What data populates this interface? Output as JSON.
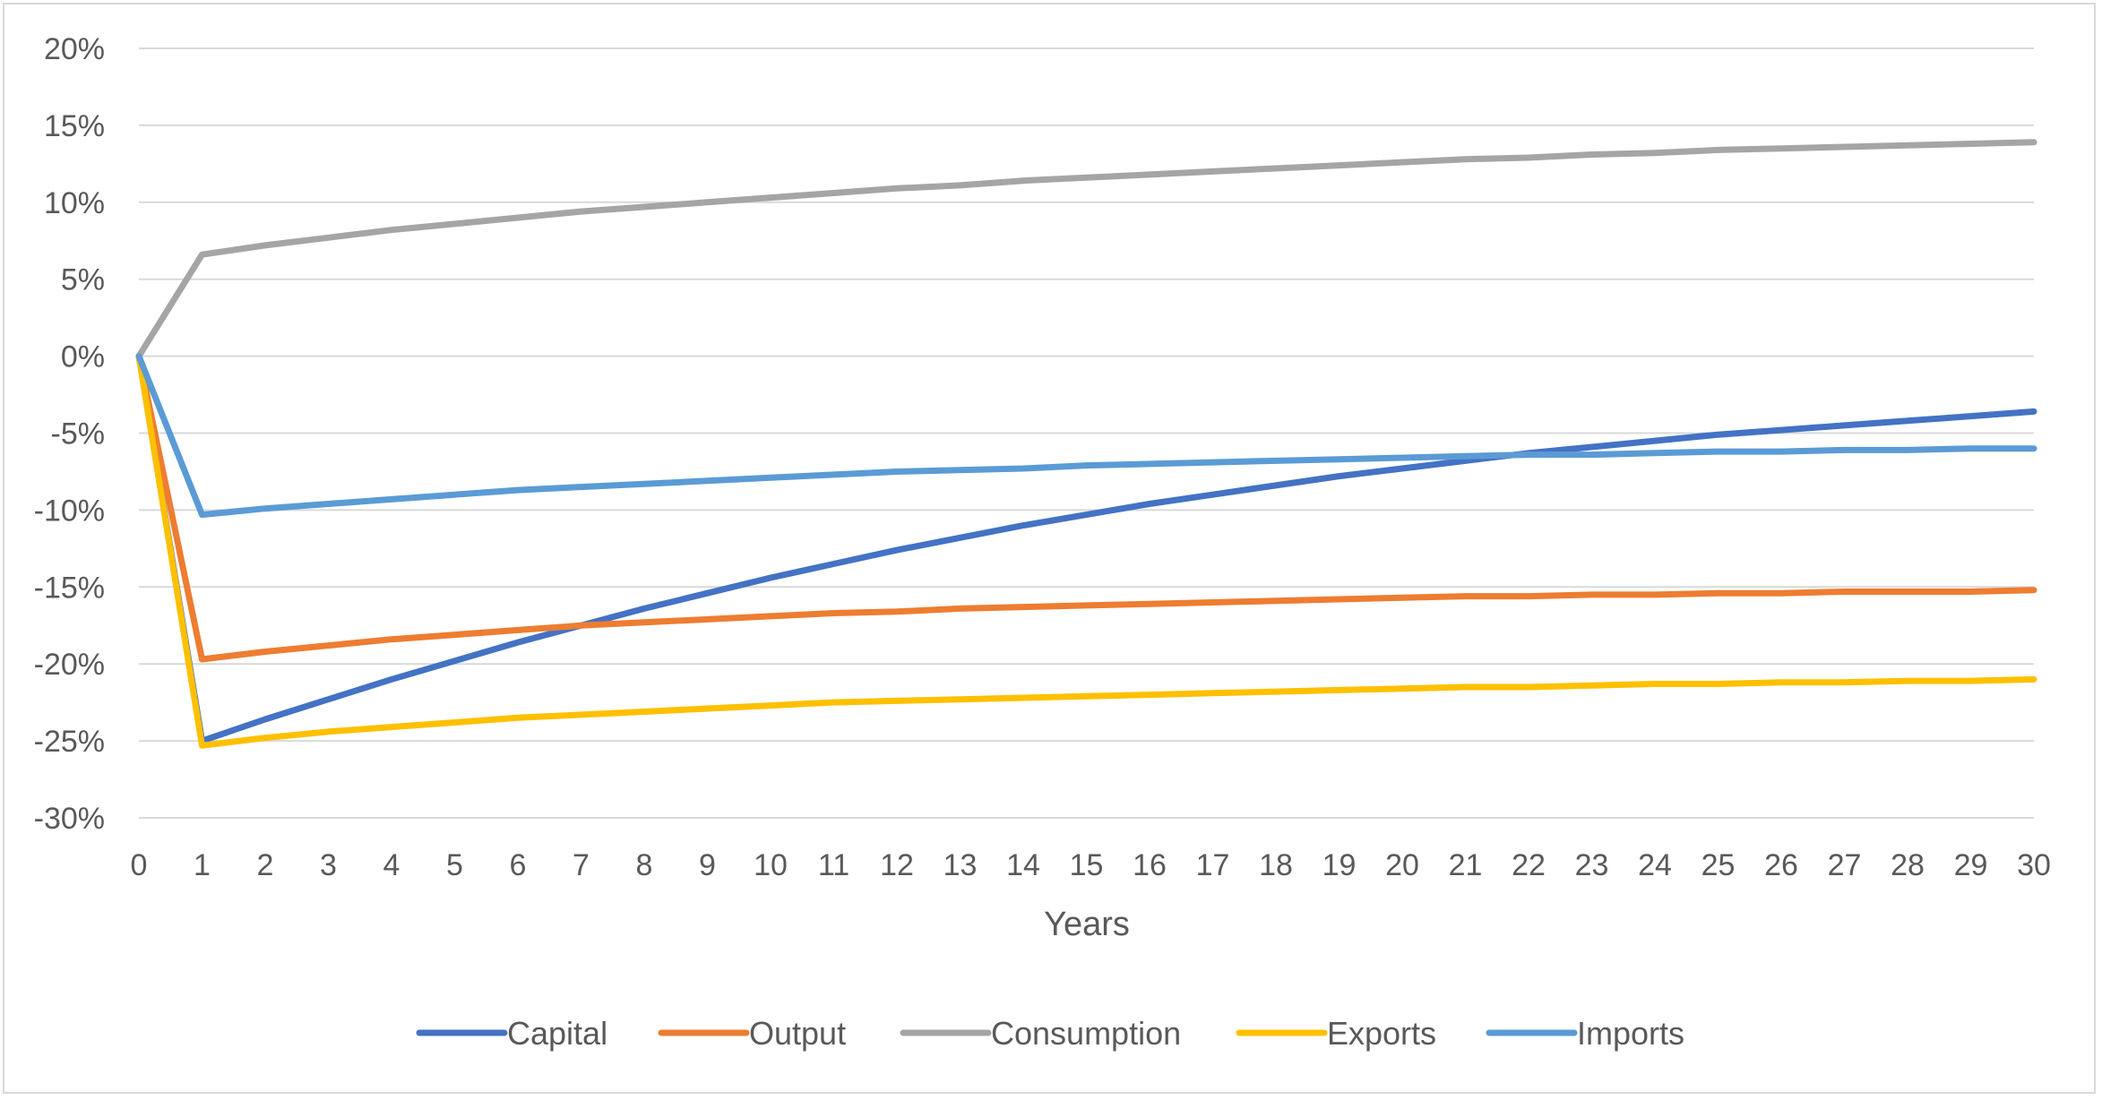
{
  "chart_data": {
    "type": "line",
    "title": "",
    "xlabel": "Years",
    "ylabel": "",
    "x": [
      0,
      1,
      2,
      3,
      4,
      5,
      6,
      7,
      8,
      9,
      10,
      11,
      12,
      13,
      14,
      15,
      16,
      17,
      18,
      19,
      20,
      21,
      22,
      23,
      24,
      25,
      26,
      27,
      28,
      29,
      30
    ],
    "xlim": [
      0,
      30
    ],
    "ylim": [
      -30,
      20
    ],
    "y_ticks": [
      20,
      15,
      10,
      5,
      0,
      -5,
      -10,
      -15,
      -20,
      -25,
      -30
    ],
    "y_tick_labels": [
      "20%",
      "15%",
      "10%",
      "5%",
      "0%",
      "-5%",
      "-10%",
      "-15%",
      "-20%",
      "-25%",
      "-30%"
    ],
    "x_tick_labels": [
      "0",
      "1",
      "2",
      "3",
      "4",
      "5",
      "6",
      "7",
      "8",
      "9",
      "10",
      "11",
      "12",
      "13",
      "14",
      "15",
      "16",
      "17",
      "18",
      "19",
      "20",
      "21",
      "22",
      "23",
      "24",
      "25",
      "26",
      "27",
      "28",
      "29",
      "30"
    ],
    "grid": "horizontal",
    "legend_position": "bottom",
    "series": [
      {
        "name": "Capital",
        "color": "#4472C4",
        "values": [
          0,
          -25.0,
          -23.6,
          -22.3,
          -21.0,
          -19.8,
          -18.6,
          -17.5,
          -16.4,
          -15.4,
          -14.4,
          -13.5,
          -12.6,
          -11.8,
          -11.0,
          -10.3,
          -9.6,
          -9.0,
          -8.4,
          -7.8,
          -7.3,
          -6.8,
          -6.3,
          -5.9,
          -5.5,
          -5.1,
          -4.8,
          -4.5,
          -4.2,
          -3.9,
          -3.6
        ]
      },
      {
        "name": "Output",
        "color": "#ED7D31",
        "values": [
          0,
          -19.7,
          -19.2,
          -18.8,
          -18.4,
          -18.1,
          -17.8,
          -17.5,
          -17.3,
          -17.1,
          -16.9,
          -16.7,
          -16.6,
          -16.4,
          -16.3,
          -16.2,
          -16.1,
          -16.0,
          -15.9,
          -15.8,
          -15.7,
          -15.6,
          -15.6,
          -15.5,
          -15.5,
          -15.4,
          -15.4,
          -15.3,
          -15.3,
          -15.3,
          -15.2
        ]
      },
      {
        "name": "Consumption",
        "color": "#A5A5A5",
        "values": [
          0,
          6.6,
          7.2,
          7.7,
          8.2,
          8.6,
          9.0,
          9.4,
          9.7,
          10.0,
          10.3,
          10.6,
          10.9,
          11.1,
          11.4,
          11.6,
          11.8,
          12.0,
          12.2,
          12.4,
          12.6,
          12.8,
          12.9,
          13.1,
          13.2,
          13.4,
          13.5,
          13.6,
          13.7,
          13.8,
          13.9
        ]
      },
      {
        "name": "Exports",
        "color": "#FFC000",
        "values": [
          0,
          -25.3,
          -24.8,
          -24.4,
          -24.1,
          -23.8,
          -23.5,
          -23.3,
          -23.1,
          -22.9,
          -22.7,
          -22.5,
          -22.4,
          -22.3,
          -22.2,
          -22.1,
          -22.0,
          -21.9,
          -21.8,
          -21.7,
          -21.6,
          -21.5,
          -21.5,
          -21.4,
          -21.3,
          -21.3,
          -21.2,
          -21.2,
          -21.1,
          -21.1,
          -21.0
        ]
      },
      {
        "name": "Imports",
        "color": "#5B9BD5",
        "values": [
          0,
          -10.3,
          -9.9,
          -9.6,
          -9.3,
          -9.0,
          -8.7,
          -8.5,
          -8.3,
          -8.1,
          -7.9,
          -7.7,
          -7.5,
          -7.4,
          -7.3,
          -7.1,
          -7.0,
          -6.9,
          -6.8,
          -6.7,
          -6.6,
          -6.5,
          -6.4,
          -6.4,
          -6.3,
          -6.2,
          -6.2,
          -6.1,
          -6.1,
          -6.0,
          -6.0
        ]
      }
    ]
  }
}
